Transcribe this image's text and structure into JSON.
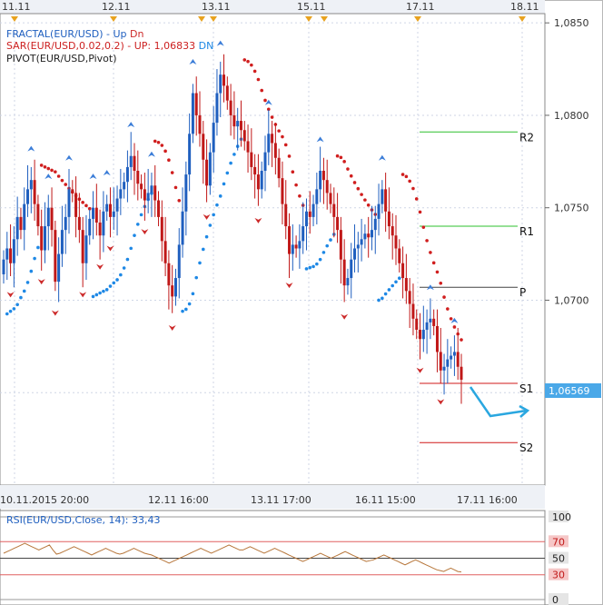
{
  "chart_data": [
    {
      "type": "candlestick",
      "indicators": [
        {
          "name": "FRACTAL(EUR/USD)",
          "up_label": "Up",
          "dn_label": "Dn",
          "up_color": "#3b7dd8",
          "dn_color": "#cc2a2a"
        },
        {
          "name": "SAR(EUR/USD,0.02,0.2)",
          "trend_label": "UP:",
          "value": "1,06833",
          "dn_label": "DN",
          "up_color": "#cc1f1f",
          "dn_color": "#1e88e5"
        },
        {
          "name": "PIVOT(EUR/USD,Pivot)"
        }
      ],
      "top_dates": [
        "11.11",
        "12.11",
        "13.11",
        "15.11",
        "17.11",
        "18.11"
      ],
      "x_labels": [
        "10.11.2015 20:00",
        "12.11 16:00",
        "13.11 17:00",
        "16.11 15:00",
        "17.11 16:00"
      ],
      "ylim": [
        1.06,
        1.0855
      ],
      "y_ticks": [
        "1,0850",
        "1,0800",
        "1,0750",
        "1,0700",
        "1,0650"
      ],
      "last_price": "1,06569",
      "pivot_levels": [
        {
          "label": "R2",
          "value": 1.0791,
          "color": "#2ec02e"
        },
        {
          "label": "R1",
          "value": 1.074,
          "color": "#2ec02e"
        },
        {
          "label": "P",
          "value": 1.0707,
          "color": "#444444"
        },
        {
          "label": "S1",
          "value": 1.0655,
          "color": "#d01818"
        },
        {
          "label": "S2",
          "value": 1.0623,
          "color": "#d01818"
        }
      ],
      "series_close": [
        1.0722,
        1.0728,
        1.072,
        1.0733,
        1.0745,
        1.0738,
        1.0752,
        1.076,
        1.0765,
        1.0752,
        1.074,
        1.0727,
        1.074,
        1.075,
        1.0738,
        1.071,
        1.0725,
        1.0738,
        1.0745,
        1.076,
        1.0758,
        1.0745,
        1.0738,
        1.072,
        1.0735,
        1.0744,
        1.075,
        1.0742,
        1.0735,
        1.0748,
        1.0752,
        1.0745,
        1.0748,
        1.0755,
        1.076,
        1.0764,
        1.0772,
        1.0778,
        1.077,
        1.0763,
        1.076,
        1.0754,
        1.0758,
        1.0762,
        1.0754,
        1.0745,
        1.0732,
        1.072,
        1.0708,
        1.0702,
        1.0712,
        1.073,
        1.0748,
        1.0768,
        1.079,
        1.0812,
        1.08,
        1.079,
        1.0776,
        1.0762,
        1.078,
        1.0796,
        1.0812,
        1.0822,
        1.0816,
        1.0808,
        1.08,
        1.0794,
        1.0797,
        1.0792,
        1.0786,
        1.078,
        1.0772,
        1.0768,
        1.076,
        1.077,
        1.078,
        1.079,
        1.0785,
        1.0777,
        1.0766,
        1.0752,
        1.074,
        1.0725,
        1.073,
        1.0728,
        1.0732,
        1.074,
        1.0748,
        1.0745,
        1.0752,
        1.076,
        1.077,
        1.0765,
        1.0758,
        1.0752,
        1.0745,
        1.0738,
        1.0722,
        1.0708,
        1.0712,
        1.0722,
        1.0728,
        1.073,
        1.0733,
        1.0736,
        1.0734,
        1.0738,
        1.0744,
        1.0752,
        1.076,
        1.0748,
        1.074,
        1.0735,
        1.0728,
        1.072,
        1.0712,
        1.0705,
        1.0698,
        1.069,
        1.0684,
        1.0679,
        1.0684,
        1.0688,
        1.069,
        1.0686,
        1.0672,
        1.0662,
        1.0664,
        1.0668,
        1.067,
        1.0672,
        1.0664,
        1.0657
      ],
      "rsi": {
        "label": "RSI(EUR/USD,Close, 14): 33,43",
        "levels": [
          "100",
          "70",
          "50",
          "30",
          "0"
        ],
        "values": [
          56,
          58,
          60,
          62,
          64,
          66,
          68,
          66,
          64,
          62,
          60,
          62,
          64,
          66,
          60,
          55,
          56,
          58,
          60,
          62,
          64,
          62,
          60,
          58,
          56,
          54,
          56,
          58,
          60,
          62,
          60,
          58,
          56,
          55,
          56,
          58,
          60,
          62,
          60,
          58,
          56,
          55,
          54,
          52,
          50,
          48,
          46,
          44,
          46,
          48,
          50,
          52,
          54,
          56,
          58,
          60,
          62,
          60,
          58,
          56,
          58,
          60,
          62,
          64,
          66,
          64,
          62,
          60,
          60,
          62,
          64,
          62,
          60,
          58,
          56,
          58,
          60,
          62,
          60,
          58,
          56,
          54,
          52,
          50,
          48,
          46,
          48,
          50,
          52,
          54,
          56,
          54,
          52,
          50,
          52,
          54,
          56,
          58,
          56,
          54,
          52,
          50,
          48,
          46,
          47,
          48,
          50,
          52,
          54,
          52,
          50,
          48,
          46,
          44,
          42,
          44,
          46,
          48,
          46,
          44,
          42,
          40,
          38,
          36,
          35,
          34,
          36,
          38,
          36,
          34,
          33.43
        ]
      }
    }
  ]
}
